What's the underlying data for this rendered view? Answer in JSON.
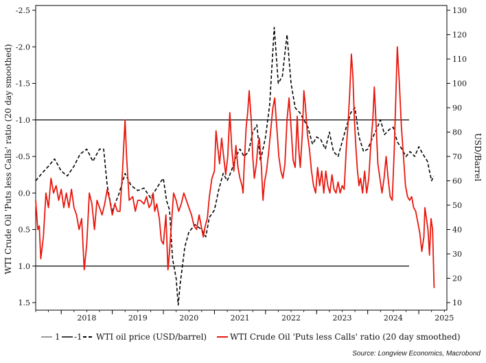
{
  "chart_data": {
    "type": "line",
    "title": "",
    "left_axis": {
      "label": "WTI Crude Oil 'Puts less Calls' ratio (20 day smoothed)",
      "range": [
        -2.5,
        1.5
      ],
      "inverted": true,
      "ticks": [
        "-2.5",
        "-2.0",
        "-1.5",
        "-1.0",
        "-0.5",
        "0.0",
        "0.5",
        "1.0",
        "1.5"
      ]
    },
    "right_axis": {
      "label": "USD/Barrel",
      "range": [
        10,
        130
      ],
      "ticks": [
        "10",
        "20",
        "30",
        "40",
        "50",
        "60",
        "70",
        "80",
        "90",
        "100",
        "110",
        "120",
        "130"
      ]
    },
    "x_axis": {
      "range": [
        2017.5,
        2025.55
      ],
      "ticks": [
        "2018",
        "2019",
        "2020",
        "2021",
        "2022",
        "2023",
        "2024",
        "2025"
      ]
    },
    "reference_lines": [
      {
        "name": "1",
        "value": 1.0
      },
      {
        "name": "-1",
        "value": -1.0
      }
    ],
    "series": [
      {
        "name": "WTI oil price (USD/barrel)",
        "axis": "right",
        "style": "dashed",
        "color": "#000000",
        "points": [
          [
            2017.5,
            60
          ],
          [
            2017.62,
            63
          ],
          [
            2017.75,
            66
          ],
          [
            2017.87,
            69
          ],
          [
            2018.0,
            64
          ],
          [
            2018.12,
            62
          ],
          [
            2018.25,
            66
          ],
          [
            2018.37,
            71
          ],
          [
            2018.5,
            73
          ],
          [
            2018.62,
            68
          ],
          [
            2018.75,
            73
          ],
          [
            2018.83,
            73
          ],
          [
            2018.9,
            58
          ],
          [
            2019.0,
            47
          ],
          [
            2019.04,
            50
          ],
          [
            2019.12,
            54
          ],
          [
            2019.25,
            63
          ],
          [
            2019.37,
            58
          ],
          [
            2019.5,
            56
          ],
          [
            2019.62,
            57
          ],
          [
            2019.75,
            53
          ],
          [
            2019.87,
            57
          ],
          [
            2019.96,
            60
          ],
          [
            2020.0,
            61
          ],
          [
            2020.06,
            52
          ],
          [
            2020.12,
            48
          ],
          [
            2020.18,
            28
          ],
          [
            2020.25,
            20
          ],
          [
            2020.29,
            9
          ],
          [
            2020.33,
            18
          ],
          [
            2020.42,
            33
          ],
          [
            2020.5,
            39
          ],
          [
            2020.62,
            42
          ],
          [
            2020.75,
            40
          ],
          [
            2020.83,
            37
          ],
          [
            2020.9,
            45
          ],
          [
            2021.0,
            48
          ],
          [
            2021.08,
            56
          ],
          [
            2021.17,
            63
          ],
          [
            2021.25,
            60
          ],
          [
            2021.33,
            64
          ],
          [
            2021.42,
            70
          ],
          [
            2021.5,
            73
          ],
          [
            2021.58,
            70
          ],
          [
            2021.67,
            72
          ],
          [
            2021.75,
            80
          ],
          [
            2021.83,
            83
          ],
          [
            2021.9,
            68
          ],
          [
            2022.0,
            78
          ],
          [
            2022.08,
            91
          ],
          [
            2022.17,
            123
          ],
          [
            2022.25,
            100
          ],
          [
            2022.33,
            103
          ],
          [
            2022.42,
            120
          ],
          [
            2022.5,
            100
          ],
          [
            2022.58,
            90
          ],
          [
            2022.67,
            88
          ],
          [
            2022.75,
            85
          ],
          [
            2022.83,
            82
          ],
          [
            2022.92,
            75
          ],
          [
            2023.0,
            78
          ],
          [
            2023.08,
            77
          ],
          [
            2023.17,
            73
          ],
          [
            2023.25,
            80
          ],
          [
            2023.33,
            72
          ],
          [
            2023.42,
            70
          ],
          [
            2023.5,
            76
          ],
          [
            2023.58,
            82
          ],
          [
            2023.67,
            88
          ],
          [
            2023.75,
            90
          ],
          [
            2023.83,
            78
          ],
          [
            2023.92,
            72
          ],
          [
            2024.0,
            73
          ],
          [
            2024.08,
            77
          ],
          [
            2024.17,
            81
          ],
          [
            2024.25,
            85
          ],
          [
            2024.33,
            79
          ],
          [
            2024.42,
            81
          ],
          [
            2024.5,
            82
          ],
          [
            2024.58,
            76
          ],
          [
            2024.67,
            73
          ],
          [
            2024.75,
            70
          ],
          [
            2024.83,
            72
          ],
          [
            2024.92,
            70
          ],
          [
            2025.0,
            74
          ],
          [
            2025.08,
            71
          ],
          [
            2025.17,
            68
          ],
          [
            2025.25,
            60
          ],
          [
            2025.29,
            62
          ]
        ]
      },
      {
        "name": "WTI Crude Oil 'Puts less Calls' ratio (20 day smoothed)",
        "axis": "left",
        "style": "solid",
        "color": "#e8160c",
        "points": [
          [
            2017.5,
            0.1
          ],
          [
            2017.54,
            0.5
          ],
          [
            2017.57,
            0.45
          ],
          [
            2017.6,
            0.9
          ],
          [
            2017.65,
            0.6
          ],
          [
            2017.7,
            0.0
          ],
          [
            2017.75,
            0.2
          ],
          [
            2017.8,
            -0.2
          ],
          [
            2017.85,
            0.0
          ],
          [
            2017.9,
            -0.1
          ],
          [
            2017.95,
            0.1
          ],
          [
            2018.0,
            -0.05
          ],
          [
            2018.05,
            0.2
          ],
          [
            2018.1,
            0.0
          ],
          [
            2018.15,
            0.2
          ],
          [
            2018.2,
            -0.05
          ],
          [
            2018.25,
            0.2
          ],
          [
            2018.3,
            0.3
          ],
          [
            2018.35,
            0.5
          ],
          [
            2018.4,
            0.35
          ],
          [
            2018.45,
            1.05
          ],
          [
            2018.5,
            0.7
          ],
          [
            2018.55,
            0.0
          ],
          [
            2018.6,
            0.15
          ],
          [
            2018.65,
            0.5
          ],
          [
            2018.7,
            0.1
          ],
          [
            2018.75,
            0.2
          ],
          [
            2018.8,
            0.3
          ],
          [
            2018.85,
            0.15
          ],
          [
            2018.9,
            -0.05
          ],
          [
            2018.95,
            0.1
          ],
          [
            2019.0,
            0.3
          ],
          [
            2019.05,
            0.15
          ],
          [
            2019.1,
            0.25
          ],
          [
            2019.15,
            0.25
          ],
          [
            2019.2,
            -0.3
          ],
          [
            2019.22,
            -0.6
          ],
          [
            2019.25,
            -1.0
          ],
          [
            2019.28,
            -0.5
          ],
          [
            2019.33,
            0.1
          ],
          [
            2019.4,
            0.05
          ],
          [
            2019.45,
            0.25
          ],
          [
            2019.5,
            0.1
          ],
          [
            2019.55,
            0.1
          ],
          [
            2019.62,
            0.15
          ],
          [
            2019.67,
            0.05
          ],
          [
            2019.72,
            0.2
          ],
          [
            2019.76,
            0.15
          ],
          [
            2019.8,
            0.0
          ],
          [
            2019.83,
            0.25
          ],
          [
            2019.87,
            0.15
          ],
          [
            2019.92,
            0.35
          ],
          [
            2019.96,
            0.65
          ],
          [
            2020.0,
            0.7
          ],
          [
            2020.05,
            0.3
          ],
          [
            2020.09,
            1.05
          ],
          [
            2020.12,
            0.8
          ],
          [
            2020.16,
            0.4
          ],
          [
            2020.2,
            0.0
          ],
          [
            2020.25,
            0.1
          ],
          [
            2020.3,
            0.25
          ],
          [
            2020.35,
            0.15
          ],
          [
            2020.4,
            0.0
          ],
          [
            2020.45,
            0.1
          ],
          [
            2020.5,
            0.2
          ],
          [
            2020.55,
            0.3
          ],
          [
            2020.6,
            0.45
          ],
          [
            2020.65,
            0.5
          ],
          [
            2020.7,
            0.3
          ],
          [
            2020.74,
            0.45
          ],
          [
            2020.78,
            0.6
          ],
          [
            2020.82,
            0.45
          ],
          [
            2020.86,
            0.35
          ],
          [
            2020.9,
            0.05
          ],
          [
            2020.95,
            -0.2
          ],
          [
            2021.0,
            -0.3
          ],
          [
            2021.03,
            -0.85
          ],
          [
            2021.06,
            -0.65
          ],
          [
            2021.1,
            -0.4
          ],
          [
            2021.14,
            -0.75
          ],
          [
            2021.18,
            -0.5
          ],
          [
            2021.22,
            -0.25
          ],
          [
            2021.26,
            -0.5
          ],
          [
            2021.3,
            -1.1
          ],
          [
            2021.34,
            -0.6
          ],
          [
            2021.38,
            -0.3
          ],
          [
            2021.42,
            -0.65
          ],
          [
            2021.46,
            -0.35
          ],
          [
            2021.5,
            -0.2
          ],
          [
            2021.54,
            -0.1
          ],
          [
            2021.56,
            0.0
          ],
          [
            2021.58,
            -0.35
          ],
          [
            2021.62,
            -0.9
          ],
          [
            2021.65,
            -1.1
          ],
          [
            2021.68,
            -1.4
          ],
          [
            2021.72,
            -1.0
          ],
          [
            2021.75,
            -0.5
          ],
          [
            2021.78,
            -0.2
          ],
          [
            2021.82,
            -0.4
          ],
          [
            2021.85,
            -0.65
          ],
          [
            2021.88,
            -0.75
          ],
          [
            2021.92,
            -0.35
          ],
          [
            2021.95,
            0.1
          ],
          [
            2021.98,
            -0.15
          ],
          [
            2022.02,
            -0.3
          ],
          [
            2022.06,
            -0.55
          ],
          [
            2022.1,
            -0.85
          ],
          [
            2022.14,
            -1.15
          ],
          [
            2022.18,
            -1.3
          ],
          [
            2022.22,
            -0.9
          ],
          [
            2022.26,
            -0.5
          ],
          [
            2022.3,
            -0.3
          ],
          [
            2022.34,
            -0.2
          ],
          [
            2022.38,
            -0.4
          ],
          [
            2022.42,
            -1.0
          ],
          [
            2022.46,
            -1.3
          ],
          [
            2022.5,
            -0.9
          ],
          [
            2022.54,
            -0.45
          ],
          [
            2022.58,
            -0.35
          ],
          [
            2022.62,
            -1.05
          ],
          [
            2022.65,
            -0.6
          ],
          [
            2022.68,
            -0.35
          ],
          [
            2022.72,
            -0.8
          ],
          [
            2022.75,
            -1.4
          ],
          [
            2022.78,
            -1.2
          ],
          [
            2022.82,
            -0.8
          ],
          [
            2022.86,
            -0.6
          ],
          [
            2022.9,
            -0.3
          ],
          [
            2022.94,
            -0.1
          ],
          [
            2022.98,
            0.0
          ],
          [
            2023.02,
            -0.35
          ],
          [
            2023.06,
            -0.1
          ],
          [
            2023.1,
            -0.3
          ],
          [
            2023.14,
            0.0
          ],
          [
            2023.18,
            -0.3
          ],
          [
            2023.22,
            -0.1
          ],
          [
            2023.26,
            0.0
          ],
          [
            2023.3,
            -0.25
          ],
          [
            2023.34,
            -0.05
          ],
          [
            2023.38,
            0.0
          ],
          [
            2023.42,
            -0.15
          ],
          [
            2023.46,
            0.0
          ],
          [
            2023.5,
            -0.1
          ],
          [
            2023.54,
            -0.05
          ],
          [
            2023.58,
            -0.6
          ],
          [
            2023.62,
            -1.0
          ],
          [
            2023.65,
            -1.4
          ],
          [
            2023.68,
            -1.9
          ],
          [
            2023.71,
            -1.6
          ],
          [
            2023.74,
            -1.0
          ],
          [
            2023.77,
            -0.6
          ],
          [
            2023.8,
            -0.3
          ],
          [
            2023.83,
            -0.1
          ],
          [
            2023.86,
            -0.2
          ],
          [
            2023.9,
            0.0
          ],
          [
            2023.94,
            -0.3
          ],
          [
            2023.98,
            0.0
          ],
          [
            2024.02,
            -0.2
          ],
          [
            2024.06,
            -0.65
          ],
          [
            2024.1,
            -1.0
          ],
          [
            2024.13,
            -1.45
          ],
          [
            2024.16,
            -1.0
          ],
          [
            2024.2,
            -0.4
          ],
          [
            2024.24,
            -0.2
          ],
          [
            2024.28,
            0.0
          ],
          [
            2024.32,
            -0.2
          ],
          [
            2024.36,
            -0.5
          ],
          [
            2024.4,
            -0.2
          ],
          [
            2024.44,
            0.05
          ],
          [
            2024.48,
            0.1
          ],
          [
            2024.52,
            -0.6
          ],
          [
            2024.55,
            -1.3
          ],
          [
            2024.58,
            -2.0
          ],
          [
            2024.62,
            -1.5
          ],
          [
            2024.66,
            -0.9
          ],
          [
            2024.7,
            -0.5
          ],
          [
            2024.74,
            -0.1
          ],
          [
            2024.78,
            0.05
          ],
          [
            2024.82,
            0.1
          ],
          [
            2024.86,
            0.05
          ],
          [
            2024.9,
            0.2
          ],
          [
            2024.94,
            0.25
          ],
          [
            2024.98,
            0.4
          ],
          [
            2025.02,
            0.55
          ],
          [
            2025.06,
            0.8
          ],
          [
            2025.1,
            0.6
          ],
          [
            2025.12,
            0.2
          ],
          [
            2025.15,
            0.35
          ],
          [
            2025.18,
            0.5
          ],
          [
            2025.21,
            0.85
          ],
          [
            2025.24,
            0.35
          ],
          [
            2025.27,
            0.5
          ],
          [
            2025.3,
            1.3
          ]
        ]
      }
    ],
    "legend": {
      "placement": "bottom",
      "entries": [
        {
          "label": "1",
          "style": "solid",
          "color": "#777777"
        },
        {
          "label": "-1",
          "style": "solid",
          "color": "#000000"
        },
        {
          "label": "WTI oil price (USD/barrel)",
          "style": "dashed",
          "color": "#000000"
        },
        {
          "label": "WTI Crude Oil 'Puts less Calls' ratio (20 day smoothed)",
          "style": "solid",
          "color": "#e8160c"
        }
      ]
    },
    "source": "Source: Longview Economics, Macrobond"
  }
}
